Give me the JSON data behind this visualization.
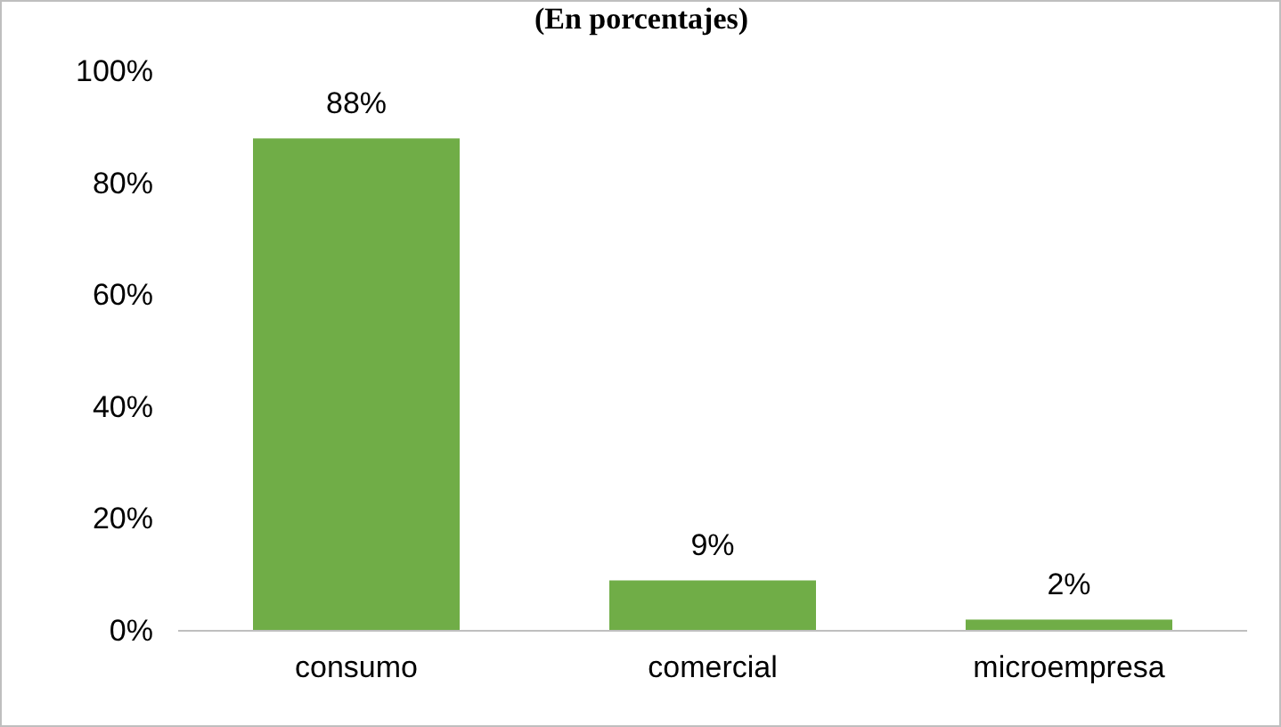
{
  "chart_data": {
    "type": "bar",
    "title": "(En porcentajes)",
    "categories": [
      "consumo",
      "comercial",
      "microempresa"
    ],
    "values": [
      88,
      9,
      2
    ],
    "value_labels": [
      "88%",
      "9%",
      "2%"
    ],
    "color": "#70ad47",
    "ylim": [
      0,
      100
    ],
    "yticks": [
      {
        "value": 0,
        "label": "0%"
      },
      {
        "value": 20,
        "label": "20%"
      },
      {
        "value": 40,
        "label": "40%"
      },
      {
        "value": 60,
        "label": "60%"
      },
      {
        "value": 80,
        "label": "80%"
      },
      {
        "value": 100,
        "label": "100%"
      }
    ],
    "grid": false
  }
}
